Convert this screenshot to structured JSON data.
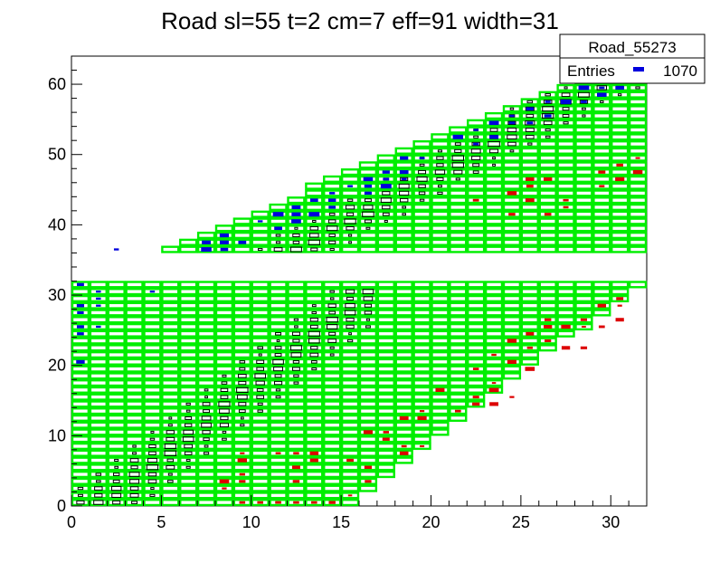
{
  "chart_data": {
    "type": "heatmap",
    "title": "Road sl=55 t=2 cm=7 eff=91 width=31",
    "xlabel": "",
    "ylabel": "",
    "xlim": [
      0,
      32
    ],
    "ylim": [
      0,
      64
    ],
    "x_ticks": [
      "0",
      "5",
      "10",
      "15",
      "20",
      "25",
      "30"
    ],
    "y_ticks": [
      "0",
      "10",
      "20",
      "30",
      "40",
      "50",
      "60"
    ],
    "grid": false,
    "stats_box": {
      "name": "Road_55273",
      "entries_label": "Entries",
      "entries_value": "1070"
    },
    "colors": {
      "road": "#00ee00",
      "black_hits": "#000000",
      "blue_hits": "#0000dd",
      "red_hits": "#dd0000"
    },
    "road_segments": [
      {
        "y0": 0,
        "y1": 32,
        "x_start": 0,
        "x_end_bottom": 16,
        "x_end_top": 32
      },
      {
        "y0": 36,
        "y1": 61,
        "x_start_bottom": 5,
        "x_start_top": 28,
        "x_end_bottom": 32,
        "x_end_top": 32
      }
    ],
    "series": [
      {
        "color": "black",
        "description": "main diagonal band of box-bins (lower and upper segments)"
      },
      {
        "color": "blue",
        "description": "hits above the road band"
      },
      {
        "color": "red",
        "description": "hits below the road band"
      }
    ]
  }
}
